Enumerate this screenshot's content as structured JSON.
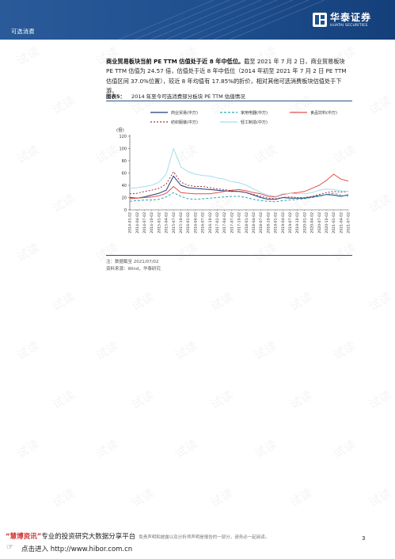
{
  "header": {
    "section": "可选消费",
    "logo_cn": "华泰证券",
    "logo_en": "HUATAI SECURITIES"
  },
  "paragraph": {
    "bold": "商业贸易板块当前 PE TTM 估值处于近 8 年中低位。",
    "text": "截至 2021 年 7 月 2 日，商业贸易板块 PE TTM 估值为 24.57 倍，估值处于近 8 年中低位（2014 年初至 2021 年 7 月 2 日 PE TTM 估值区间 37.0%位置），较近 8 年均值有 17.85%的折价，相对其他可选消费板块估值处于下游。"
  },
  "figure": {
    "label": "图表5：",
    "title": "2014 年至今可选消费部分板块 PE TTM 估值情况",
    "note": "注：数据截至 2021/07/02",
    "source": "资料来源：Wind，华泰研究"
  },
  "chart_data": {
    "type": "line",
    "unit": "(倍)",
    "ylim": [
      0,
      120
    ],
    "yticks": [
      0,
      20,
      40,
      60,
      80,
      100,
      120
    ],
    "xticks": [
      "2014-01-02",
      "2014-04-02",
      "2014-07-02",
      "2014-10-02",
      "2015-01-02",
      "2015-04-02",
      "2015-07-02",
      "2015-10-02",
      "2016-01-02",
      "2016-04-02",
      "2016-07-02",
      "2016-10-02",
      "2017-01-02",
      "2017-04-02",
      "2017-07-02",
      "2017-10-02",
      "2018-01-02",
      "2018-04-02",
      "2018-07-02",
      "2018-10-02",
      "2019-01-02",
      "2019-04-02",
      "2019-07-02",
      "2019-10-02",
      "2020-01-02",
      "2020-04-02",
      "2020-07-02",
      "2020-10-02",
      "2021-01-02",
      "2021-04-02",
      "2021-07-02"
    ],
    "series": [
      {
        "name": "商业贸易(中万)",
        "color": "#1f3a78",
        "dash": "none",
        "values": [
          20,
          19,
          21,
          24,
          27,
          32,
          55,
          40,
          36,
          35,
          34,
          33,
          32,
          31,
          30,
          30,
          28,
          24,
          20,
          17,
          17,
          20,
          19,
          19,
          19,
          21,
          23,
          25,
          24,
          22,
          24.57
        ]
      },
      {
        "name": "家用电器(中万)",
        "color": "#2aa7b5",
        "dash": "3,2",
        "values": [
          14,
          15,
          16,
          16,
          17,
          21,
          28,
          22,
          18,
          17,
          18,
          19,
          20,
          21,
          22,
          22,
          20,
          17,
          15,
          14,
          13,
          15,
          16,
          17,
          18,
          20,
          22,
          25,
          27,
          24,
          22
        ]
      },
      {
        "name": "食品饮料(中万)",
        "color": "#e0524c",
        "dash": "none",
        "values": [
          18,
          19,
          20,
          21,
          23,
          27,
          38,
          28,
          27,
          26,
          26,
          26,
          28,
          30,
          32,
          33,
          31,
          28,
          26,
          22,
          21,
          25,
          27,
          28,
          30,
          35,
          40,
          48,
          58,
          50,
          47
        ]
      },
      {
        "name": "纺织服装(中万)",
        "color": "#a8303a",
        "dash": "2,2",
        "values": [
          26,
          27,
          30,
          32,
          35,
          42,
          62,
          45,
          40,
          38,
          38,
          36,
          34,
          33,
          31,
          30,
          28,
          25,
          22,
          19,
          18,
          20,
          21,
          20,
          20,
          22,
          25,
          28,
          30,
          29,
          30
        ]
      },
      {
        "name": "轻工制造(中万)",
        "color": "#a9dcec",
        "dash": "none",
        "values": [
          35,
          36,
          38,
          40,
          45,
          58,
          100,
          70,
          62,
          58,
          56,
          55,
          52,
          50,
          46,
          44,
          40,
          34,
          28,
          24,
          22,
          26,
          27,
          26,
          26,
          28,
          32,
          34,
          33,
          31,
          30
        ]
      }
    ]
  },
  "footer": {
    "brand": "“慧博资讯”",
    "slogan": "专业的投资研究大数据分享平台",
    "disclaimer": "免责声明和披露以及分析师声明是报告的一部分，请务必一起阅读。",
    "link": "点击进入 http://www.hibor.com.cn",
    "page": "3"
  },
  "watermark": "试读"
}
